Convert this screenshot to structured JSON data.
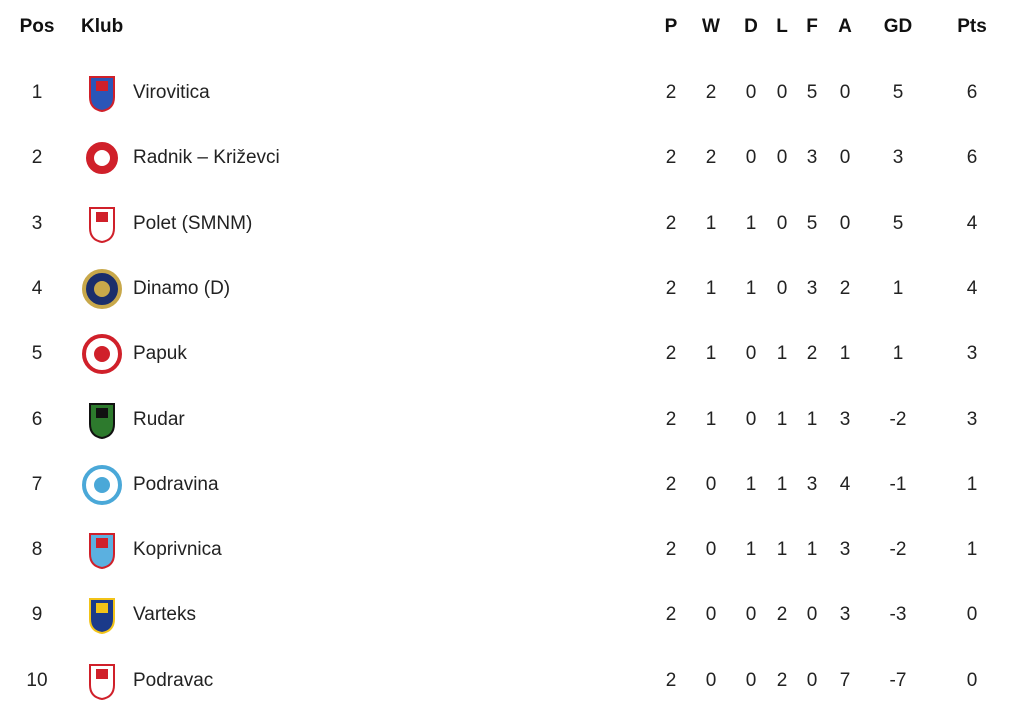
{
  "headers": {
    "pos": "Pos",
    "club": "Klub",
    "p": "P",
    "w": "W",
    "d": "D",
    "l": "L",
    "f": "F",
    "a": "A",
    "gd": "GD",
    "pts": "Pts"
  },
  "rows": [
    {
      "pos": "1",
      "club": "Virovitica",
      "p": "2",
      "w": "2",
      "d": "0",
      "l": "0",
      "f": "5",
      "a": "0",
      "gd": "5",
      "pts": "6",
      "logo": "shield",
      "c1": "#2a56b8",
      "c2": "#d0202a"
    },
    {
      "pos": "2",
      "club": "Radnik – Križevci",
      "p": "2",
      "w": "2",
      "d": "0",
      "l": "0",
      "f": "3",
      "a": "0",
      "gd": "3",
      "pts": "6",
      "logo": "circle",
      "c1": "#d0202a",
      "c2": "#ffffff"
    },
    {
      "pos": "3",
      "club": "Polet (SMNM)",
      "p": "2",
      "w": "1",
      "d": "1",
      "l": "0",
      "f": "5",
      "a": "0",
      "gd": "5",
      "pts": "4",
      "logo": "shield",
      "c1": "#ffffff",
      "c2": "#d0202a"
    },
    {
      "pos": "4",
      "club": "Dinamo (D)",
      "p": "2",
      "w": "1",
      "d": "1",
      "l": "0",
      "f": "3",
      "a": "2",
      "gd": "1",
      "pts": "4",
      "logo": "circle",
      "c1": "#1b2e6b",
      "c2": "#c8a84a"
    },
    {
      "pos": "5",
      "club": "Papuk",
      "p": "2",
      "w": "1",
      "d": "0",
      "l": "1",
      "f": "2",
      "a": "1",
      "gd": "1",
      "pts": "3",
      "logo": "circle",
      "c1": "#ffffff",
      "c2": "#d0202a"
    },
    {
      "pos": "6",
      "club": "Rudar",
      "p": "2",
      "w": "1",
      "d": "0",
      "l": "1",
      "f": "1",
      "a": "3",
      "gd": "-2",
      "pts": "3",
      "logo": "shield",
      "c1": "#2d7a2d",
      "c2": "#111111"
    },
    {
      "pos": "7",
      "club": "Podravina",
      "p": "2",
      "w": "0",
      "d": "1",
      "l": "1",
      "f": "3",
      "a": "4",
      "gd": "-1",
      "pts": "1",
      "logo": "circle",
      "c1": "#ffffff",
      "c2": "#4aa8d8"
    },
    {
      "pos": "8",
      "club": "Koprivnica",
      "p": "2",
      "w": "0",
      "d": "1",
      "l": "1",
      "f": "1",
      "a": "3",
      "gd": "-2",
      "pts": "1",
      "logo": "shield",
      "c1": "#5bb0e0",
      "c2": "#d0202a"
    },
    {
      "pos": "9",
      "club": "Varteks",
      "p": "2",
      "w": "0",
      "d": "0",
      "l": "2",
      "f": "0",
      "a": "3",
      "gd": "-3",
      "pts": "0",
      "logo": "shield",
      "c1": "#1b3a8a",
      "c2": "#f2c318"
    },
    {
      "pos": "10",
      "club": "Podravac",
      "p": "2",
      "w": "0",
      "d": "0",
      "l": "2",
      "f": "0",
      "a": "7",
      "gd": "-7",
      "pts": "0",
      "logo": "shield",
      "c1": "#ffffff",
      "c2": "#d0202a"
    }
  ]
}
